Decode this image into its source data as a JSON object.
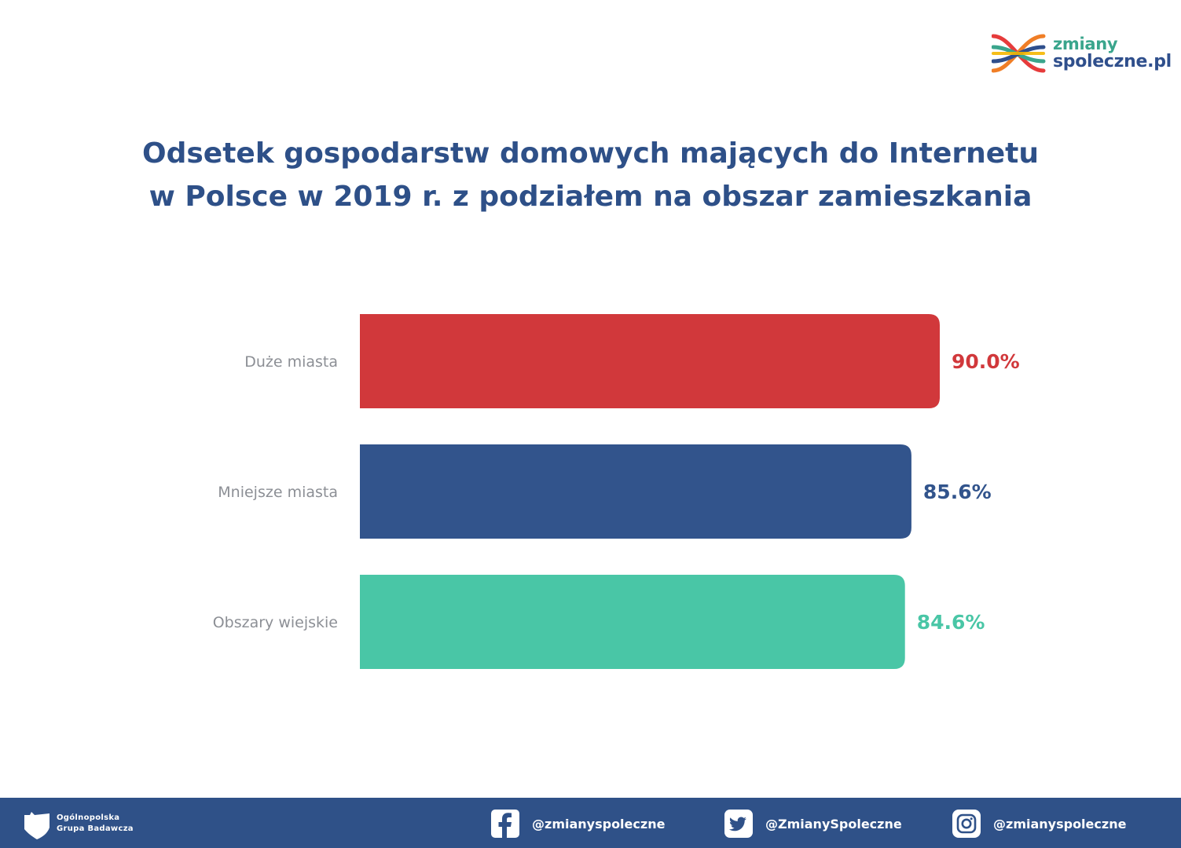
{
  "logo": {
    "line1": "zmiany",
    "line2": "spoleczne.pl",
    "colors": [
      "#e63b3b",
      "#3aa58c",
      "#f5b700",
      "#2f4f8c",
      "#f07e26"
    ]
  },
  "chart_data": {
    "type": "bar",
    "orientation": "horizontal",
    "title_lines": [
      "Odsetek gospodarstw domowych mających do Internetu",
      "w Polsce w 2019 r. z podziałem na obszar zamieszkania"
    ],
    "categories": [
      "Duże miasta",
      "Mniejsze miasta",
      "Obszary wiejskie"
    ],
    "values": [
      90.0,
      85.6,
      84.6
    ],
    "value_labels": [
      "90.0%",
      "85.6%",
      "84.6%"
    ],
    "colors": [
      "#d1383b",
      "#32548c",
      "#49c6a6"
    ],
    "unit": "%",
    "xlim": [
      0,
      100
    ],
    "grid": false,
    "legend": "none"
  },
  "footer": {
    "org_line1": "Ogólnopolska",
    "org_line2": "Grupa Badawcza",
    "social": [
      {
        "icon": "facebook-icon",
        "handle": "@zmianyspoleczne"
      },
      {
        "icon": "twitter-icon",
        "handle": "@ZmianySpoleczne"
      },
      {
        "icon": "instagram-icon",
        "handle": "@zmianyspoleczne"
      }
    ]
  }
}
